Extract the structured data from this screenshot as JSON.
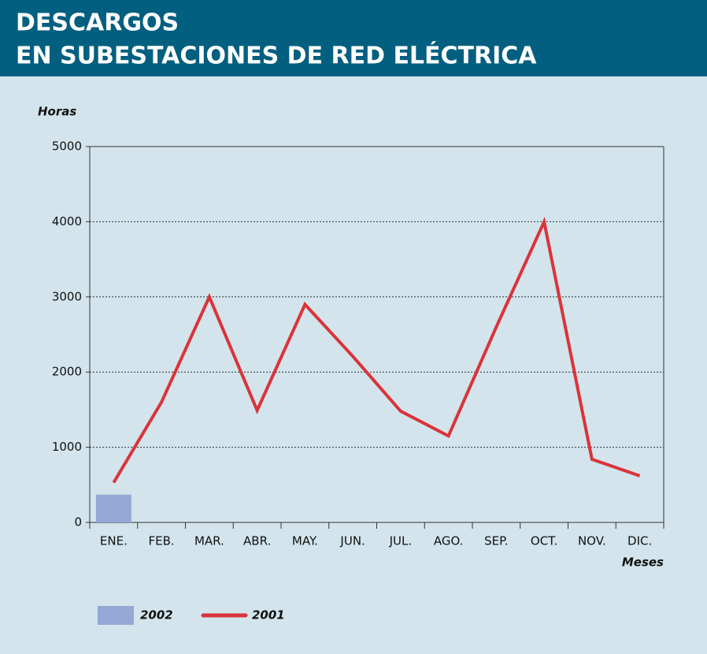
{
  "chart_data": {
    "type": "line",
    "title": [
      "DESCARGOS",
      "EN SUBESTACIONES DE RED ELÉCTRICA"
    ],
    "y_label": "Horas",
    "x_label": "Meses",
    "categories": [
      "ENE.",
      "FEB.",
      "MAR.",
      "ABR.",
      "MAY.",
      "JUN.",
      "JUL.",
      "AGO.",
      "SEP.",
      "OCT.",
      "NOV.",
      "DIC."
    ],
    "series": [
      {
        "name": "2002",
        "type": "bar",
        "color": "#96a8d6",
        "values": [
          370,
          null,
          null,
          null,
          null,
          null,
          null,
          null,
          null,
          null,
          null,
          null
        ]
      },
      {
        "name": "2001",
        "type": "line",
        "color": "#d9343a",
        "values": [
          530,
          1600,
          3000,
          1490,
          2900,
          2210,
          1480,
          1150,
          2600,
          4000,
          840,
          620
        ]
      }
    ],
    "ylim": [
      0,
      5000
    ],
    "yticks": [
      0,
      1000,
      2000,
      3000,
      4000,
      5000
    ],
    "grid": true
  }
}
